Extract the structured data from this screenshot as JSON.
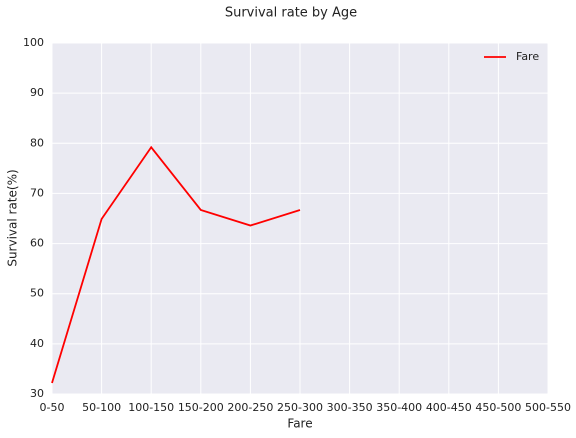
{
  "chart_data": {
    "type": "line",
    "title": "Survival rate by Age",
    "xlabel": "Fare",
    "ylabel": "Survival rate(%)",
    "categories": [
      "0-50",
      "50-100",
      "100-150",
      "150-200",
      "200-250",
      "250-300",
      "300-350",
      "350-400",
      "400-450",
      "450-500",
      "500-550"
    ],
    "series": [
      {
        "name": "Fare",
        "color": "#ff0000",
        "values": [
          32.2,
          64.9,
          79.2,
          66.7,
          63.6,
          66.7,
          null,
          null,
          null,
          null,
          null
        ]
      }
    ],
    "ylim": [
      30,
      100
    ],
    "yticks": [
      30,
      40,
      50,
      60,
      70,
      80,
      90,
      100
    ],
    "grid": true,
    "legend": "upper right"
  }
}
